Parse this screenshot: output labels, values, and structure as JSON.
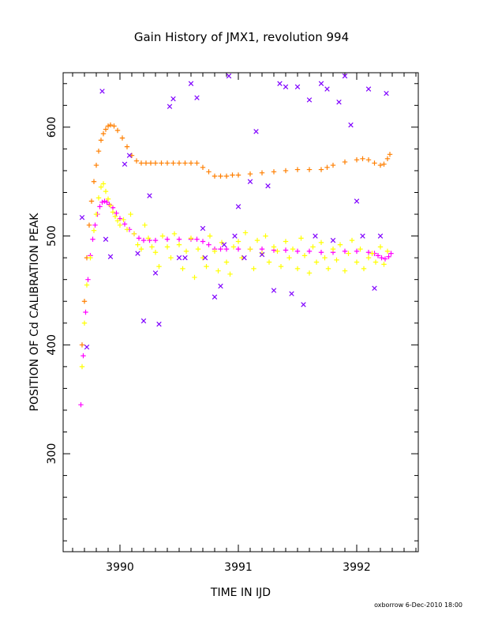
{
  "chart_data": {
    "type": "scatter",
    "title": "Gain History of JMX1, revolution 994",
    "xlabel": "TIME IN IJD",
    "ylabel": "POSITION OF Cd CALIBRATION PEAK",
    "footer": "oxborrow   6-Dec-2010 18:00",
    "xlim": [
      3989.52,
      3992.52
    ],
    "ylim": [
      210,
      650
    ],
    "xticks": [
      3990,
      3991,
      3992
    ],
    "yticks": [
      300,
      400,
      500,
      600
    ],
    "grid": false,
    "colors": {
      "orange": "#ff7f00",
      "magenta": "#ff00ff",
      "yellow": "#ffff00",
      "purple": "#7f00ff"
    },
    "series": [
      {
        "marker": "+",
        "color": "#ff7f00",
        "x": [
          3989.68,
          3989.7,
          3989.72,
          3989.74,
          3989.76,
          3989.78,
          3989.8,
          3989.82,
          3989.84,
          3989.86,
          3989.88,
          3989.9,
          3989.92,
          3989.95,
          3989.98,
          3990.02,
          3990.06,
          3990.1,
          3990.14,
          3990.18,
          3990.22,
          3990.26,
          3990.3,
          3990.35,
          3990.4,
          3990.45,
          3990.5,
          3990.55,
          3990.6,
          3990.65,
          3990.7,
          3990.75,
          3990.8,
          3990.85,
          3990.9,
          3990.95,
          3991.0,
          3991.1,
          3991.2,
          3991.3,
          3991.4,
          3991.5,
          3991.6,
          3991.7,
          3991.75,
          3991.8,
          3991.9,
          3992.0,
          3992.05,
          3992.1,
          3992.15,
          3992.2,
          3992.23,
          3992.26,
          3992.28
        ],
        "y": [
          400,
          440,
          480,
          510,
          532,
          550,
          565,
          578,
          588,
          594,
          598,
          601,
          602,
          601,
          597,
          590,
          582,
          574,
          569,
          567,
          567,
          567,
          567,
          567,
          567,
          567,
          567,
          567,
          567,
          567,
          563,
          559,
          555,
          555,
          555,
          556,
          556,
          557,
          558,
          559,
          560,
          561,
          561,
          561,
          563,
          565,
          568,
          570,
          571,
          570,
          567,
          565,
          566,
          571,
          575
        ]
      },
      {
        "marker": "+",
        "color": "#ff00ff",
        "x": [
          3989.67,
          3989.69,
          3989.71,
          3989.73,
          3989.75,
          3989.77,
          3989.79,
          3989.81,
          3989.83,
          3989.85,
          3989.87,
          3989.89,
          3989.91,
          3989.94,
          3989.97,
          3990.0,
          3990.04,
          3990.08,
          3990.12,
          3990.16,
          3990.2,
          3990.25,
          3990.3,
          3990.4,
          3990.5,
          3990.6,
          3990.65,
          3990.7,
          3990.75,
          3990.8,
          3990.85,
          3990.9,
          3991.0,
          3991.1,
          3991.2,
          3991.3,
          3991.4,
          3991.5,
          3991.6,
          3991.7,
          3991.8,
          3991.9,
          3992.0,
          3992.1,
          3992.15,
          3992.18,
          3992.21,
          3992.24,
          3992.27,
          3992.29
        ],
        "y": [
          345,
          390,
          430,
          460,
          482,
          497,
          510,
          520,
          527,
          531,
          532,
          531,
          529,
          526,
          521,
          516,
          511,
          506,
          502,
          498,
          496,
          496,
          496,
          497,
          497,
          497,
          497,
          495,
          492,
          488,
          488,
          488,
          488,
          488,
          488,
          487,
          487,
          486,
          486,
          485,
          485,
          486,
          486,
          485,
          484,
          482,
          480,
          479,
          481,
          484
        ]
      },
      {
        "marker": "+",
        "color": "#ffff00",
        "x": [
          3989.68,
          3989.7,
          3989.72,
          3989.75,
          3989.78,
          3989.8,
          3989.82,
          3989.84,
          3989.86,
          3989.88,
          3989.9,
          3989.92,
          3989.94,
          3989.96,
          3989.98,
          3990.0,
          3990.03,
          3990.06,
          3990.09,
          3990.12,
          3990.15,
          3990.18,
          3990.21,
          3990.24,
          3990.27,
          3990.3,
          3990.33,
          3990.36,
          3990.4,
          3990.43,
          3990.46,
          3990.5,
          3990.53,
          3990.56,
          3990.6,
          3990.63,
          3990.66,
          3990.7,
          3990.73,
          3990.76,
          3990.8,
          3990.83,
          3990.86,
          3990.9,
          3990.93,
          3990.96,
          3991.0,
          3991.03,
          3991.06,
          3991.1,
          3991.13,
          3991.16,
          3991.2,
          3991.23,
          3991.26,
          3991.3,
          3991.33,
          3991.36,
          3991.4,
          3991.43,
          3991.46,
          3991.5,
          3991.53,
          3991.56,
          3991.6,
          3991.63,
          3991.66,
          3991.7,
          3991.73,
          3991.76,
          3991.8,
          3991.83,
          3991.86,
          3991.9,
          3991.93,
          3991.96,
          3992.0,
          3992.03,
          3992.06,
          3992.1,
          3992.13,
          3992.16,
          3992.2,
          3992.23,
          3992.26
        ],
        "y": [
          380,
          420,
          455,
          480,
          505,
          520,
          535,
          545,
          548,
          541,
          534,
          528,
          522,
          518,
          514,
          510,
          515,
          506,
          520,
          502,
          492,
          488,
          510,
          498,
          490,
          485,
          472,
          500,
          490,
          480,
          502,
          492,
          470,
          486,
          498,
          462,
          488,
          480,
          472,
          500,
          486,
          468,
          494,
          476,
          465,
          490,
          495,
          480,
          503,
          488,
          470,
          496,
          484,
          500,
          476,
          490,
          486,
          472,
          495,
          480,
          488,
          470,
          498,
          482,
          466,
          490,
          476,
          494,
          480,
          470,
          488,
          478,
          492,
          468,
          484,
          496,
          476,
          488,
          470,
          480,
          484,
          476,
          490,
          474,
          486
        ]
      },
      {
        "marker": "x",
        "color": "#7f00ff",
        "x": [
          3989.68,
          3989.72,
          3989.85,
          3989.88,
          3989.92,
          3990.04,
          3990.08,
          3990.15,
          3990.2,
          3990.25,
          3990.3,
          3990.33,
          3990.42,
          3990.45,
          3990.5,
          3990.55,
          3990.6,
          3990.65,
          3990.7,
          3990.72,
          3990.8,
          3990.85,
          3990.88,
          3990.92,
          3990.97,
          3991.0,
          3991.05,
          3991.1,
          3991.15,
          3991.2,
          3991.25,
          3991.3,
          3991.35,
          3991.4,
          3991.45,
          3991.5,
          3991.55,
          3991.6,
          3991.65,
          3991.7,
          3991.75,
          3991.8,
          3991.85,
          3991.9,
          3991.95,
          3992.0,
          3992.05,
          3992.1,
          3992.15,
          3992.2,
          3992.25
        ],
        "y": [
          517,
          398,
          633,
          497,
          481,
          566,
          574,
          484,
          422,
          537,
          466,
          419,
          619,
          626,
          480,
          480,
          640,
          627,
          507,
          480,
          444,
          454,
          492,
          647,
          500,
          527,
          480,
          550,
          596,
          483,
          546,
          450,
          640,
          637,
          447,
          637,
          437,
          625,
          500,
          640,
          635,
          496,
          623,
          647,
          602,
          532,
          500,
          635,
          452,
          500,
          631
        ]
      }
    ]
  }
}
